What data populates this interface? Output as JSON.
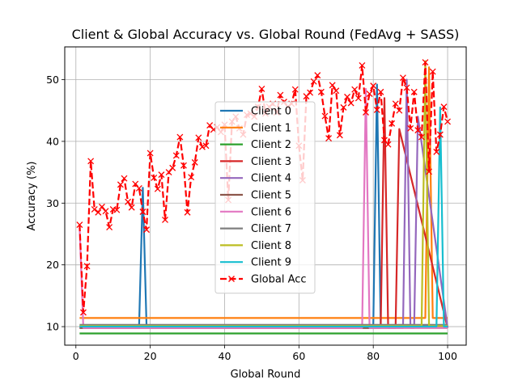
{
  "chart_data": {
    "type": "line",
    "title": "Client & Global Accuracy vs. Global Round (FedAvg + SASS)",
    "xlabel": "Global Round",
    "ylabel": "Accuracy (%)",
    "xlim": [
      -3,
      105
    ],
    "ylim": [
      7.0,
      55.3
    ],
    "xticks": [
      0,
      20,
      40,
      60,
      80,
      100
    ],
    "yticks": [
      10,
      20,
      30,
      40,
      50
    ],
    "grid": true,
    "legend_position": "center",
    "series": [
      {
        "name": "Client 0",
        "color": "#1f77b4",
        "style": "solid",
        "marker": "none",
        "x": [
          1,
          17,
          18,
          19,
          80,
          81,
          82,
          100
        ],
        "y": [
          10.1,
          10.1,
          32.5,
          10.1,
          10.1,
          49.2,
          10.1,
          10.1
        ]
      },
      {
        "name": "Client 1",
        "color": "#ff7f0e",
        "style": "solid",
        "marker": "none",
        "x": [
          1,
          94,
          95,
          96,
          100
        ],
        "y": [
          11.4,
          11.4,
          52.0,
          11.4,
          11.4
        ]
      },
      {
        "name": "Client 2",
        "color": "#2ca02c",
        "style": "solid",
        "marker": "none",
        "x": [
          1,
          100
        ],
        "y": [
          8.9,
          8.9
        ]
      },
      {
        "name": "Client 3",
        "color": "#d62728",
        "style": "solid",
        "marker": "none",
        "x": [
          1,
          82,
          83,
          84,
          86,
          87,
          100
        ],
        "y": [
          9.8,
          9.8,
          47.0,
          9.8,
          9.8,
          42.0,
          9.8
        ]
      },
      {
        "name": "Client 4",
        "color": "#9467bd",
        "style": "solid",
        "marker": "none",
        "x": [
          1,
          88,
          89,
          90,
          91,
          92,
          100
        ],
        "y": [
          9.8,
          9.8,
          50.0,
          9.8,
          9.8,
          44.0,
          9.8
        ]
      },
      {
        "name": "Client 5",
        "color": "#8c564b",
        "style": "solid",
        "marker": "none",
        "x": [
          1,
          100
        ],
        "y": [
          9.8,
          9.8
        ]
      },
      {
        "name": "Client 6",
        "color": "#e377c2",
        "style": "solid",
        "marker": "none",
        "x": [
          1,
          2,
          77,
          78,
          79,
          100
        ],
        "y": [
          26.0,
          9.8,
          9.8,
          48.5,
          9.8,
          9.8
        ]
      },
      {
        "name": "Client 7",
        "color": "#7f7f7f",
        "style": "solid",
        "marker": "none",
        "x": [
          1,
          100
        ],
        "y": [
          10.3,
          10.3
        ]
      },
      {
        "name": "Client 8",
        "color": "#bcbd22",
        "style": "solid",
        "marker": "none",
        "x": [
          1,
          93,
          94,
          95,
          100
        ],
        "y": [
          10.1,
          10.1,
          53.0,
          10.1,
          10.1
        ]
      },
      {
        "name": "Client 9",
        "color": "#17becf",
        "style": "solid",
        "marker": "none",
        "x": [
          1,
          97,
          98,
          99,
          100
        ],
        "y": [
          10.0,
          10.0,
          45.5,
          10.0,
          10.0
        ]
      },
      {
        "name": "Global Acc",
        "color": "#ff0000",
        "style": "dashed",
        "marker": "x",
        "x": [
          1,
          2,
          3,
          4,
          5,
          6,
          7,
          8,
          9,
          10,
          11,
          12,
          13,
          14,
          15,
          16,
          17,
          18,
          19,
          20,
          21,
          22,
          23,
          24,
          25,
          26,
          27,
          28,
          29,
          30,
          31,
          32,
          33,
          34,
          35,
          36,
          37,
          38,
          39,
          40,
          41,
          42,
          43,
          44,
          45,
          46,
          47,
          48,
          49,
          50,
          51,
          52,
          53,
          54,
          55,
          56,
          57,
          58,
          59,
          60,
          61,
          62,
          63,
          64,
          65,
          66,
          67,
          68,
          69,
          70,
          71,
          72,
          73,
          74,
          75,
          76,
          77,
          78,
          79,
          80,
          81,
          82,
          83,
          84,
          85,
          86,
          87,
          88,
          89,
          90,
          91,
          92,
          93,
          94,
          95,
          96,
          97,
          98,
          99,
          100
        ],
        "y": [
          26.5,
          12.3,
          19.8,
          36.8,
          29.0,
          28.5,
          29.4,
          28.7,
          26.1,
          29.0,
          28.9,
          33.0,
          34.0,
          30.2,
          29.3,
          33.1,
          32.4,
          28.6,
          25.7,
          38.1,
          34.1,
          32.3,
          34.6,
          27.3,
          35.0,
          35.7,
          37.7,
          40.7,
          36.1,
          28.5,
          34.2,
          36.6,
          40.6,
          39.1,
          39.3,
          42.6,
          41.9,
          42.3,
          41.5,
          42.7,
          30.5,
          43.2,
          44.0,
          42.1,
          41.1,
          44.3,
          44.5,
          44.0,
          45.6,
          48.5,
          44.5,
          45.6,
          46.1,
          44.7,
          47.5,
          46.4,
          45.6,
          46.1,
          48.4,
          39.3,
          33.7,
          47.3,
          47.9,
          49.7,
          50.7,
          48.0,
          44.1,
          40.5,
          49.1,
          48.2,
          41.0,
          45.5,
          47.2,
          46.2,
          48.4,
          47.0,
          52.3,
          44.7,
          47.7,
          49.0,
          45.1,
          48.0,
          40.2,
          39.5,
          42.9,
          46.1,
          45.0,
          50.3,
          48.7,
          42.1,
          48.0,
          41.8,
          40.7,
          52.8,
          35.1,
          51.3,
          38.3,
          41.1,
          45.6,
          43.2
        ]
      }
    ]
  }
}
